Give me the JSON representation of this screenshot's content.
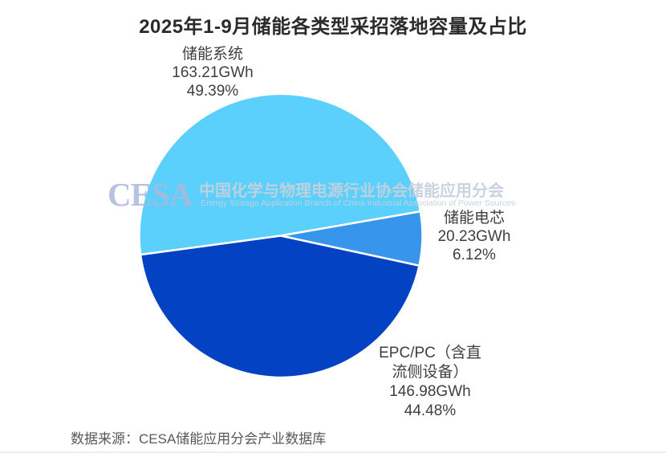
{
  "title": "2025年1-9月储能各类型采招落地容量及占比",
  "watermark": {
    "logo_text": "CESA",
    "org_cn": "中国化学与物理电源行业协会储能应用分会",
    "org_en": "Energy Storage Application Branch of China Industrial Association of Power Sources"
  },
  "source_note": "数据来源：CESA储能应用分会产业数据库",
  "callouts": {
    "storage_system": [
      "储能系统",
      "163.21GWh",
      "49.39%"
    ],
    "battery_cell": [
      "储能电芯",
      "20.23GWh",
      "6.12%"
    ],
    "epc_pc": [
      "EPC/PC（含直",
      "流侧设备）",
      "146.98GWh",
      "44.48%"
    ]
  },
  "chart_data": {
    "type": "pie",
    "title": "2025年1-9月储能各类型采招落地容量及占比",
    "unit": "GWh",
    "start_angle_deg": 9.9,
    "direction": "ccw",
    "legend": "none",
    "labels_shown": true,
    "slices": [
      {
        "id": "storage-system",
        "label": "储能系统",
        "value": 163.21,
        "percent": 49.39,
        "color": "#5bd0fd"
      },
      {
        "id": "epc-pc",
        "label": "EPC/PC（含直流侧设备）",
        "value": 146.98,
        "percent": 44.48,
        "color": "#0343c3"
      },
      {
        "id": "battery-cell",
        "label": "储能电芯",
        "value": 20.23,
        "percent": 6.12,
        "color": "#3795ec"
      }
    ]
  }
}
